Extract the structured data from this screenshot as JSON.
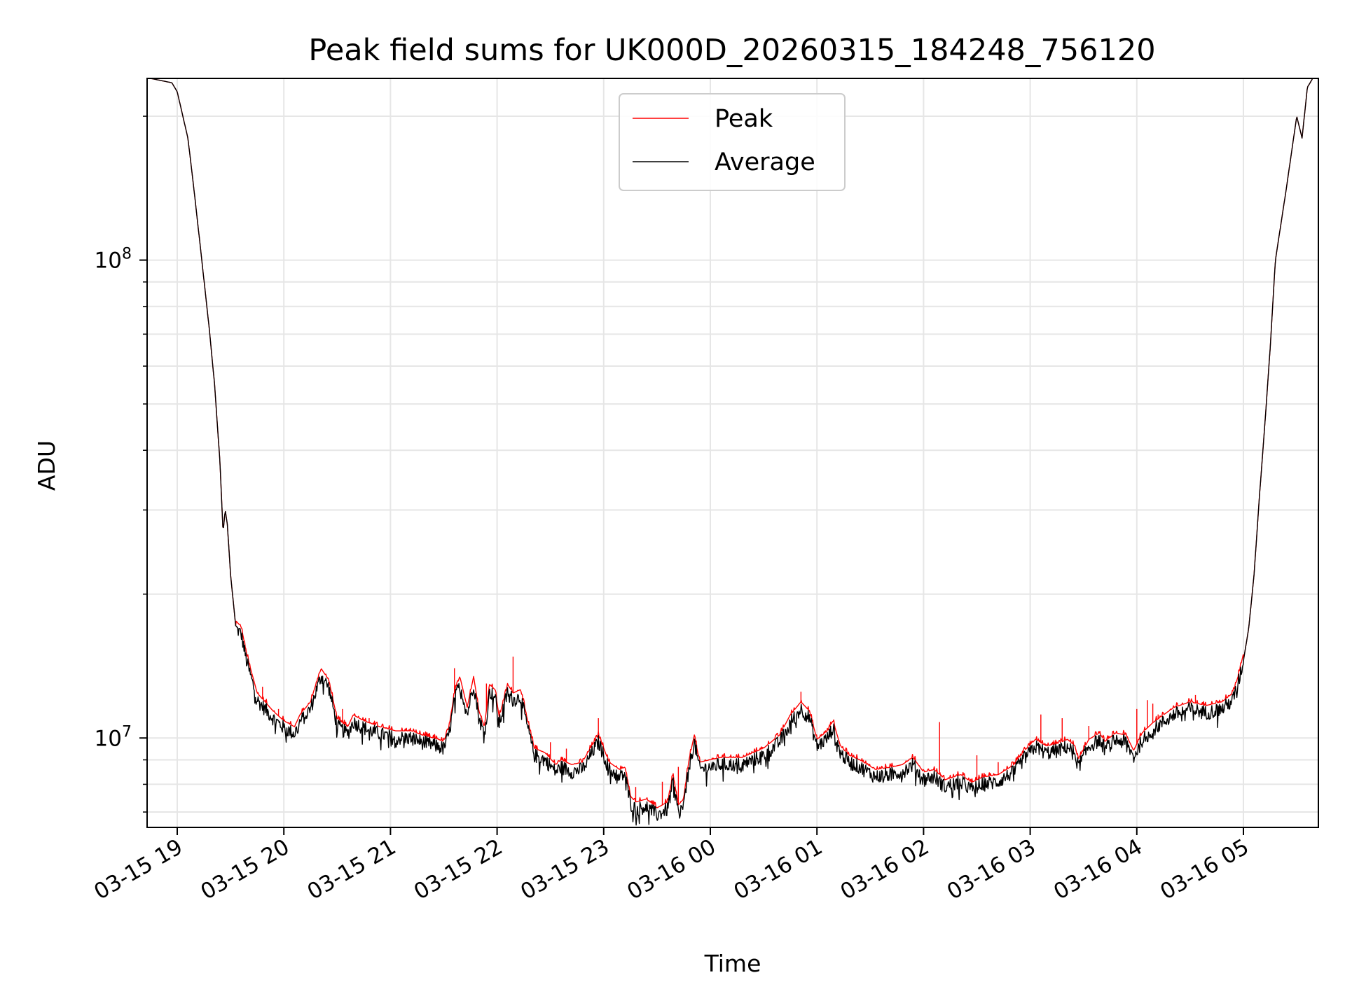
{
  "chart_data": {
    "type": "line",
    "title": "Peak field sums for UK000D_20260315_184248_756120",
    "xlabel": "Time",
    "ylabel": "ADU",
    "yscale": "log",
    "ylim": [
      6500000,
      240000000
    ],
    "xlim_hours": [
      -0.28,
      10.75
    ],
    "grid": true,
    "legend_position": "top-center",
    "x_tick_labels": [
      "03-15 19",
      "03-15 20",
      "03-15 21",
      "03-15 22",
      "03-15 23",
      "03-16 00",
      "03-16 01",
      "03-16 02",
      "03-16 03",
      "03-16 04",
      "03-16 05"
    ],
    "x_tick_hours": [
      0,
      1,
      2,
      3,
      4,
      5,
      6,
      7,
      8,
      9,
      10
    ],
    "y_major_ticks": [
      {
        "value": 10000000,
        "base": "10",
        "exp": "7"
      },
      {
        "value": 100000000,
        "base": "10",
        "exp": "8"
      }
    ],
    "series": [
      {
        "name": "Peak",
        "color": "#ff0000"
      },
      {
        "name": "Average",
        "color": "#000000"
      }
    ],
    "average_curve": [
      [
        -0.25,
        240000000
      ],
      [
        -0.05,
        235000000
      ],
      [
        0.0,
        225000000
      ],
      [
        0.1,
        180000000
      ],
      [
        0.15,
        145000000
      ],
      [
        0.22,
        105000000
      ],
      [
        0.3,
        72000000
      ],
      [
        0.35,
        55000000
      ],
      [
        0.4,
        38000000
      ],
      [
        0.45,
        30000000
      ],
      [
        0.43,
        27000000
      ],
      [
        0.47,
        28000000
      ],
      [
        0.5,
        22000000
      ],
      [
        0.55,
        17000000
      ],
      [
        0.6,
        16500000
      ],
      [
        0.65,
        14500000
      ],
      [
        0.75,
        12000000
      ],
      [
        0.9,
        11000000
      ],
      [
        1.0,
        10500000
      ],
      [
        1.1,
        10200000
      ],
      [
        1.15,
        10800000
      ],
      [
        1.25,
        11500000
      ],
      [
        1.3,
        12500000
      ],
      [
        1.35,
        13500000
      ],
      [
        1.42,
        12800000
      ],
      [
        1.5,
        10600000
      ],
      [
        1.6,
        10200000
      ],
      [
        1.65,
        10800000
      ],
      [
        1.75,
        10500000
      ],
      [
        1.9,
        10200000
      ],
      [
        2.05,
        10000000
      ],
      [
        2.2,
        10000000
      ],
      [
        2.3,
        9800000
      ],
      [
        2.45,
        9600000
      ],
      [
        2.5,
        9500000
      ],
      [
        2.55,
        10200000
      ],
      [
        2.6,
        12000000
      ],
      [
        2.65,
        13000000
      ],
      [
        2.72,
        11200000
      ],
      [
        2.78,
        13000000
      ],
      [
        2.83,
        11000000
      ],
      [
        2.88,
        10200000
      ],
      [
        2.93,
        12500000
      ],
      [
        2.98,
        12200000
      ],
      [
        3.02,
        10700000
      ],
      [
        3.1,
        12500000
      ],
      [
        3.15,
        12000000
      ],
      [
        3.22,
        12200000
      ],
      [
        3.3,
        10200000
      ],
      [
        3.35,
        9200000
      ],
      [
        3.45,
        9000000
      ],
      [
        3.55,
        8500000
      ],
      [
        3.6,
        8700000
      ],
      [
        3.7,
        8500000
      ],
      [
        3.8,
        8600000
      ],
      [
        3.85,
        9000000
      ],
      [
        3.95,
        9800000
      ],
      [
        4.0,
        9200000
      ],
      [
        4.05,
        8600000
      ],
      [
        4.15,
        8300000
      ],
      [
        4.2,
        8400000
      ],
      [
        4.25,
        7300000
      ],
      [
        4.3,
        7100000
      ],
      [
        4.4,
        7200000
      ],
      [
        4.5,
        6900000
      ],
      [
        4.6,
        7100000
      ],
      [
        4.65,
        8100000
      ],
      [
        4.7,
        7000000
      ],
      [
        4.75,
        7200000
      ],
      [
        4.8,
        8700000
      ],
      [
        4.85,
        9800000
      ],
      [
        4.9,
        8600000
      ],
      [
        5.0,
        8700000
      ],
      [
        5.1,
        8800000
      ],
      [
        5.3,
        8800000
      ],
      [
        5.5,
        9200000
      ],
      [
        5.65,
        9800000
      ],
      [
        5.75,
        10800000
      ],
      [
        5.85,
        11500000
      ],
      [
        5.93,
        11000000
      ],
      [
        6.0,
        9600000
      ],
      [
        6.1,
        10000000
      ],
      [
        6.15,
        10500000
      ],
      [
        6.22,
        9300000
      ],
      [
        6.3,
        8900000
      ],
      [
        6.4,
        8700000
      ],
      [
        6.55,
        8300000
      ],
      [
        6.7,
        8400000
      ],
      [
        6.8,
        8500000
      ],
      [
        6.9,
        8800000
      ],
      [
        7.0,
        8200000
      ],
      [
        7.1,
        8300000
      ],
      [
        7.2,
        7900000
      ],
      [
        7.35,
        8100000
      ],
      [
        7.45,
        7800000
      ],
      [
        7.55,
        8000000
      ],
      [
        7.7,
        8100000
      ],
      [
        7.85,
        8500000
      ],
      [
        7.95,
        9100000
      ],
      [
        8.05,
        9600000
      ],
      [
        8.15,
        9300000
      ],
      [
        8.25,
        9400000
      ],
      [
        8.35,
        9600000
      ],
      [
        8.42,
        9300000
      ],
      [
        8.45,
        8700000
      ],
      [
        8.55,
        9600000
      ],
      [
        8.65,
        9900000
      ],
      [
        8.7,
        9500000
      ],
      [
        8.8,
        9900000
      ],
      [
        8.9,
        9800000
      ],
      [
        8.97,
        9100000
      ],
      [
        9.05,
        9900000
      ],
      [
        9.15,
        10400000
      ],
      [
        9.25,
        10800000
      ],
      [
        9.35,
        11200000
      ],
      [
        9.5,
        11500000
      ],
      [
        9.65,
        11300000
      ],
      [
        9.8,
        11500000
      ],
      [
        9.9,
        12000000
      ],
      [
        9.95,
        13000000
      ],
      [
        10.0,
        14500000
      ],
      [
        10.05,
        17000000
      ],
      [
        10.1,
        22000000
      ],
      [
        10.15,
        32000000
      ],
      [
        10.2,
        45000000
      ],
      [
        10.25,
        65000000
      ],
      [
        10.3,
        100000000
      ],
      [
        10.4,
        140000000
      ],
      [
        10.5,
        200000000
      ],
      [
        10.55,
        180000000
      ],
      [
        10.6,
        230000000
      ],
      [
        10.65,
        240000000
      ],
      [
        10.75,
        240000000
      ]
    ],
    "peak_spikes": [
      [
        0.8,
        12800000
      ],
      [
        0.95,
        11500000
      ],
      [
        1.55,
        11500000
      ],
      [
        1.8,
        11000000
      ],
      [
        2.15,
        10500000
      ],
      [
        2.4,
        10000000
      ],
      [
        2.6,
        14000000
      ],
      [
        2.9,
        13000000
      ],
      [
        3.15,
        14800000
      ],
      [
        3.5,
        9800000
      ],
      [
        3.65,
        9500000
      ],
      [
        3.95,
        11000000
      ],
      [
        4.3,
        7900000
      ],
      [
        4.55,
        8100000
      ],
      [
        4.7,
        8700000
      ],
      [
        5.85,
        12500000
      ],
      [
        7.15,
        10800000
      ],
      [
        7.5,
        9200000
      ],
      [
        7.7,
        8900000
      ],
      [
        8.1,
        11200000
      ],
      [
        8.3,
        11000000
      ],
      [
        8.55,
        10600000
      ],
      [
        9.0,
        11500000
      ],
      [
        9.1,
        12000000
      ],
      [
        9.15,
        11800000
      ],
      [
        9.2,
        11200000
      ],
      [
        9.5,
        11800000
      ],
      [
        9.55,
        12300000
      ]
    ]
  }
}
